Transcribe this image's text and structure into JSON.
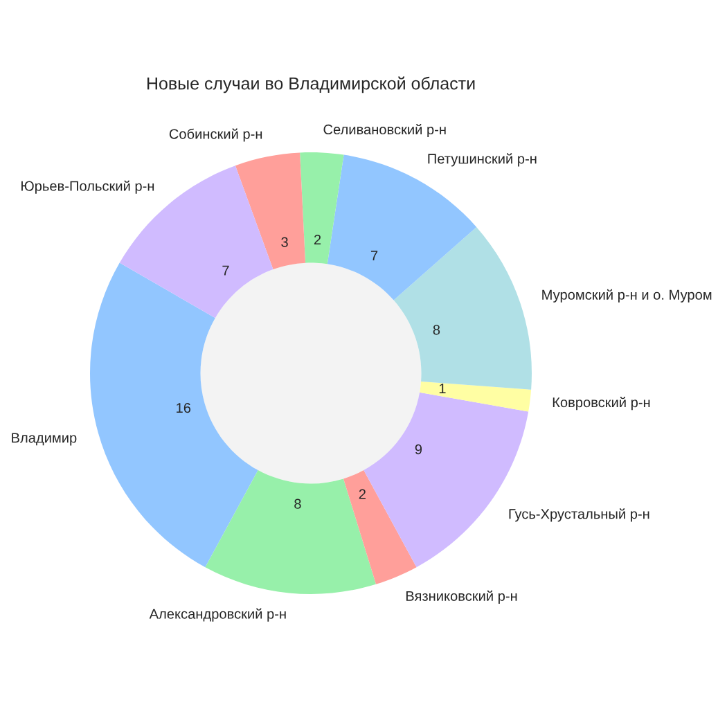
{
  "chart_data": {
    "type": "donut",
    "title": "Новые случаи во Владимирской области",
    "categories": [
      "Владимир",
      "Александровский р-н",
      "Вязниковский р-н",
      "Гусь-Хрустальный р-н",
      "Ковровский р-н",
      "Муромский р-н и о. Муром",
      "Петушинский р-н",
      "Селивановский р-н",
      "Собинский р-н",
      "Юрьев-Польский р-н"
    ],
    "values": [
      16,
      8,
      2,
      9,
      1,
      8,
      7,
      2,
      3,
      7
    ],
    "colors": [
      "#92c6ff",
      "#97f0aa",
      "#ff9f9a",
      "#d0bbff",
      "#fffea3",
      "#b0e0e6",
      "#92c6ff",
      "#97f0aa",
      "#ff9f9a",
      "#d0bbff"
    ],
    "data_labels": true
  }
}
